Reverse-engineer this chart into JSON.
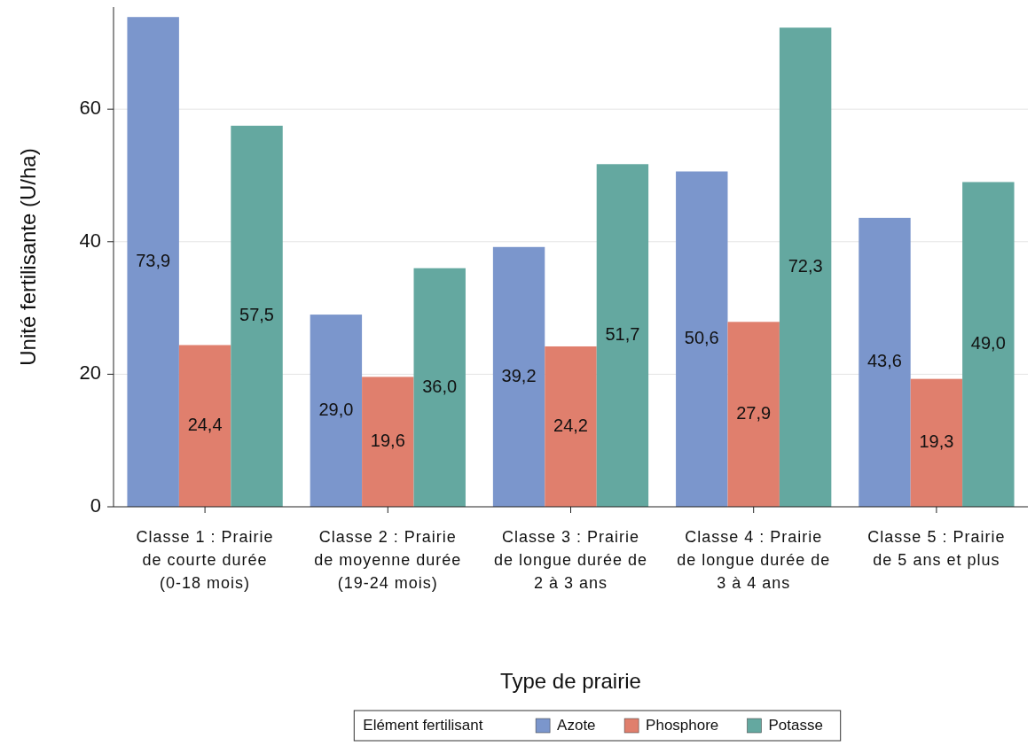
{
  "chart_data": {
    "type": "bar",
    "xlabel": "Type de prairie",
    "ylabel": "Unité fertilisante (U/ha)",
    "legend_title": "Elément fertilisant",
    "categories": [
      "Classe 1 : Prairie de courte durée (0-18 mois)",
      "Classe 2 : Prairie de moyenne durée (19-24 mois)",
      "Classe 3 : Prairie de longue durée de 2 à 3 ans",
      "Classe 4 : Prairie de longue durée de 3 à 4 ans",
      "Classe 5 : Prairie de 5 ans et plus"
    ],
    "series": [
      {
        "name": "Azote",
        "color": "#7b96cc",
        "values": [
          73.9,
          29.0,
          39.2,
          50.6,
          43.6
        ],
        "value_labels": [
          "73,9",
          "29,0",
          "39,2",
          "50,6",
          "43,6"
        ]
      },
      {
        "name": "Phosphore",
        "color": "#e07f6d",
        "values": [
          24.4,
          19.6,
          24.2,
          27.9,
          19.3
        ],
        "value_labels": [
          "24,4",
          "19,6",
          "24,2",
          "27,9",
          "19,3"
        ]
      },
      {
        "name": "Potasse",
        "color": "#64a8a0",
        "values": [
          57.5,
          36.0,
          51.7,
          72.3,
          49.0
        ],
        "value_labels": [
          "57,5",
          "36,0",
          "51,7",
          "72,3",
          "49,0"
        ]
      }
    ],
    "ylim": [
      0,
      75.4
    ],
    "yticks": [
      0,
      20,
      40,
      60
    ],
    "grid": "y",
    "legend": "bottom"
  }
}
